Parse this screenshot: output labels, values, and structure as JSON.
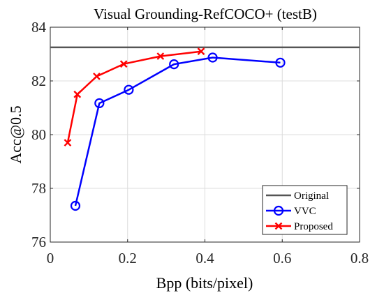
{
  "chart_data": {
    "type": "line",
    "title": "Visual Grounding-RefCOCO+ (testB)",
    "xlabel": "Bpp (bits/pixel)",
    "ylabel": "Acc@0.5",
    "xlim": [
      0,
      0.8
    ],
    "ylim": [
      76,
      84
    ],
    "xticks": [
      0,
      0.2,
      0.4,
      0.6,
      0.8
    ],
    "xtick_labels": [
      "0",
      "0.2",
      "0.4",
      "0.6",
      "0.8"
    ],
    "yticks": [
      76,
      78,
      80,
      82,
      84
    ],
    "ytick_labels": [
      "76",
      "78",
      "80",
      "82",
      "84"
    ],
    "grid": true,
    "legend_position": "bottom-right",
    "series": [
      {
        "name": "Original",
        "color": "#555555",
        "marker": "none",
        "style": "hline",
        "y": 83.25
      },
      {
        "name": "VVC",
        "color": "#0000ff",
        "marker": "circle",
        "x": [
          0.065,
          0.127,
          0.203,
          0.32,
          0.42,
          0.595
        ],
        "y": [
          77.35,
          81.17,
          81.67,
          82.62,
          82.87,
          82.68
        ]
      },
      {
        "name": "Proposed",
        "color": "#ff0000",
        "marker": "x",
        "x": [
          0.045,
          0.07,
          0.12,
          0.19,
          0.285,
          0.39
        ],
        "y": [
          79.7,
          81.5,
          82.17,
          82.63,
          82.92,
          83.1
        ]
      }
    ]
  }
}
